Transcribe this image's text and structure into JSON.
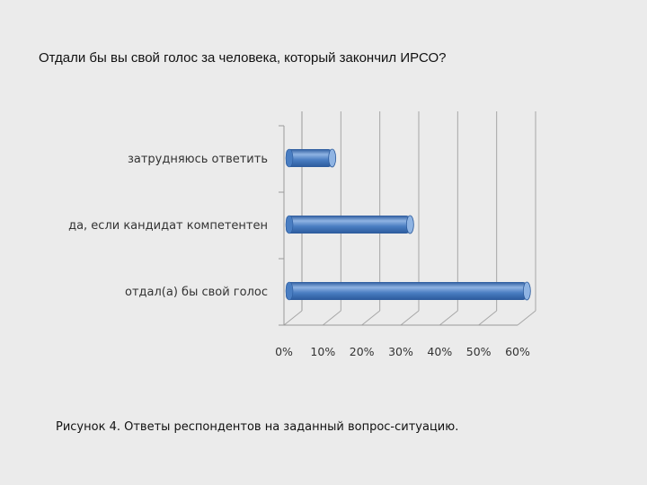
{
  "slide": {
    "heading": "Отдали бы вы свой голос за человека, который закончил ИРСО?",
    "caption": "Рисунок 4. Ответы респондентов на заданный вопрос-ситуацию."
  },
  "chart_data": {
    "type": "bar",
    "orientation": "horizontal",
    "style": "3d-cylinder",
    "title": "",
    "xlabel": "",
    "ylabel": "",
    "categories": [
      "затрудняюсь ответить",
      "да, если кандидат компетентен",
      "отдал(а) бы свой голос"
    ],
    "values": [
      0.11,
      0.31,
      0.61
    ],
    "xlim": [
      0,
      0.6
    ],
    "ticks": [
      0,
      0.1,
      0.2,
      0.3,
      0.4,
      0.5,
      0.6
    ],
    "tick_labels": [
      "0%",
      "10%",
      "20%",
      "30%",
      "40%",
      "50%",
      "60%"
    ],
    "grid": true,
    "legend": "none",
    "colors": {
      "bar": "#4a7ec2",
      "bar_dark": "#2b5a9c",
      "bar_light": "#8fb4e3",
      "grid": "#a6a6a6",
      "axis": "#999999"
    }
  }
}
